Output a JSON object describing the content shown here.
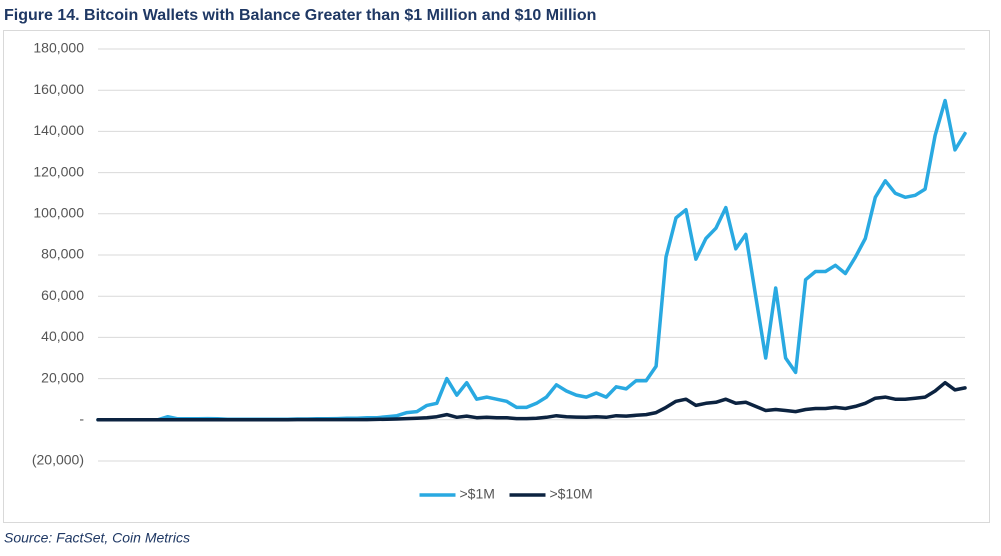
{
  "chart_data": {
    "type": "line",
    "title": "Figure 14. Bitcoin Wallets with Balance Greater than $1 Million and $10 Million",
    "source": "Source: FactSet, Coin Metrics",
    "ylim": [
      -20000,
      180000
    ],
    "yticks": [
      {
        "value": -20000,
        "label": "(20,000)"
      },
      {
        "value": 0,
        "label": "-"
      },
      {
        "value": 20000,
        "label": "20,000"
      },
      {
        "value": 40000,
        "label": "40,000"
      },
      {
        "value": 60000,
        "label": "60,000"
      },
      {
        "value": 80000,
        "label": "80,000"
      },
      {
        "value": 100000,
        "label": "100,000"
      },
      {
        "value": 120000,
        "label": "120,000"
      },
      {
        "value": 140000,
        "label": "140,000"
      },
      {
        "value": 160000,
        "label": "160,000"
      },
      {
        "value": 180000,
        "label": "180,000"
      }
    ],
    "grid": true,
    "legend": "bottom",
    "series": [
      {
        "name": ">$1M",
        "color": "#29a9e1",
        "values": [
          0,
          0,
          0,
          0,
          0,
          0,
          0,
          1500,
          500,
          500,
          500,
          600,
          500,
          300,
          300,
          300,
          300,
          300,
          300,
          300,
          400,
          400,
          500,
          500,
          600,
          800,
          800,
          1000,
          1000,
          1500,
          2000,
          3500,
          4000,
          7000,
          8000,
          20000,
          12000,
          18000,
          10000,
          11000,
          10000,
          9000,
          6000,
          6000,
          8000,
          11000,
          17000,
          14000,
          12000,
          11000,
          13000,
          11000,
          16000,
          15000,
          19000,
          19000,
          26000,
          79000,
          98000,
          102000,
          78000,
          88000,
          93000,
          103000,
          83000,
          90000,
          60000,
          30000,
          64000,
          30000,
          23000,
          68000,
          72000,
          72000,
          75000,
          71000,
          79000,
          88000,
          108000,
          116000,
          110000,
          108000,
          109000,
          112000,
          138000,
          155000,
          131000,
          139000
        ]
      },
      {
        "name": ">$10M",
        "color": "#0c2340",
        "values": [
          0,
          0,
          0,
          0,
          0,
          0,
          0,
          0,
          0,
          0,
          0,
          0,
          0,
          0,
          0,
          0,
          0,
          0,
          0,
          0,
          100,
          100,
          100,
          100,
          100,
          100,
          100,
          100,
          200,
          300,
          400,
          600,
          800,
          1000,
          1500,
          2500,
          1200,
          1800,
          1000,
          1200,
          1000,
          1000,
          600,
          600,
          800,
          1200,
          2000,
          1500,
          1300,
          1200,
          1500,
          1200,
          2000,
          1800,
          2200,
          2500,
          3500,
          6000,
          9000,
          10000,
          7000,
          8000,
          8500,
          10000,
          8000,
          8500,
          6500,
          4500,
          5000,
          4500,
          4000,
          5000,
          5500,
          5500,
          6000,
          5500,
          6500,
          8000,
          10500,
          11000,
          10000,
          10000,
          10500,
          11000,
          14000,
          18000,
          14500,
          15500
        ]
      }
    ]
  }
}
